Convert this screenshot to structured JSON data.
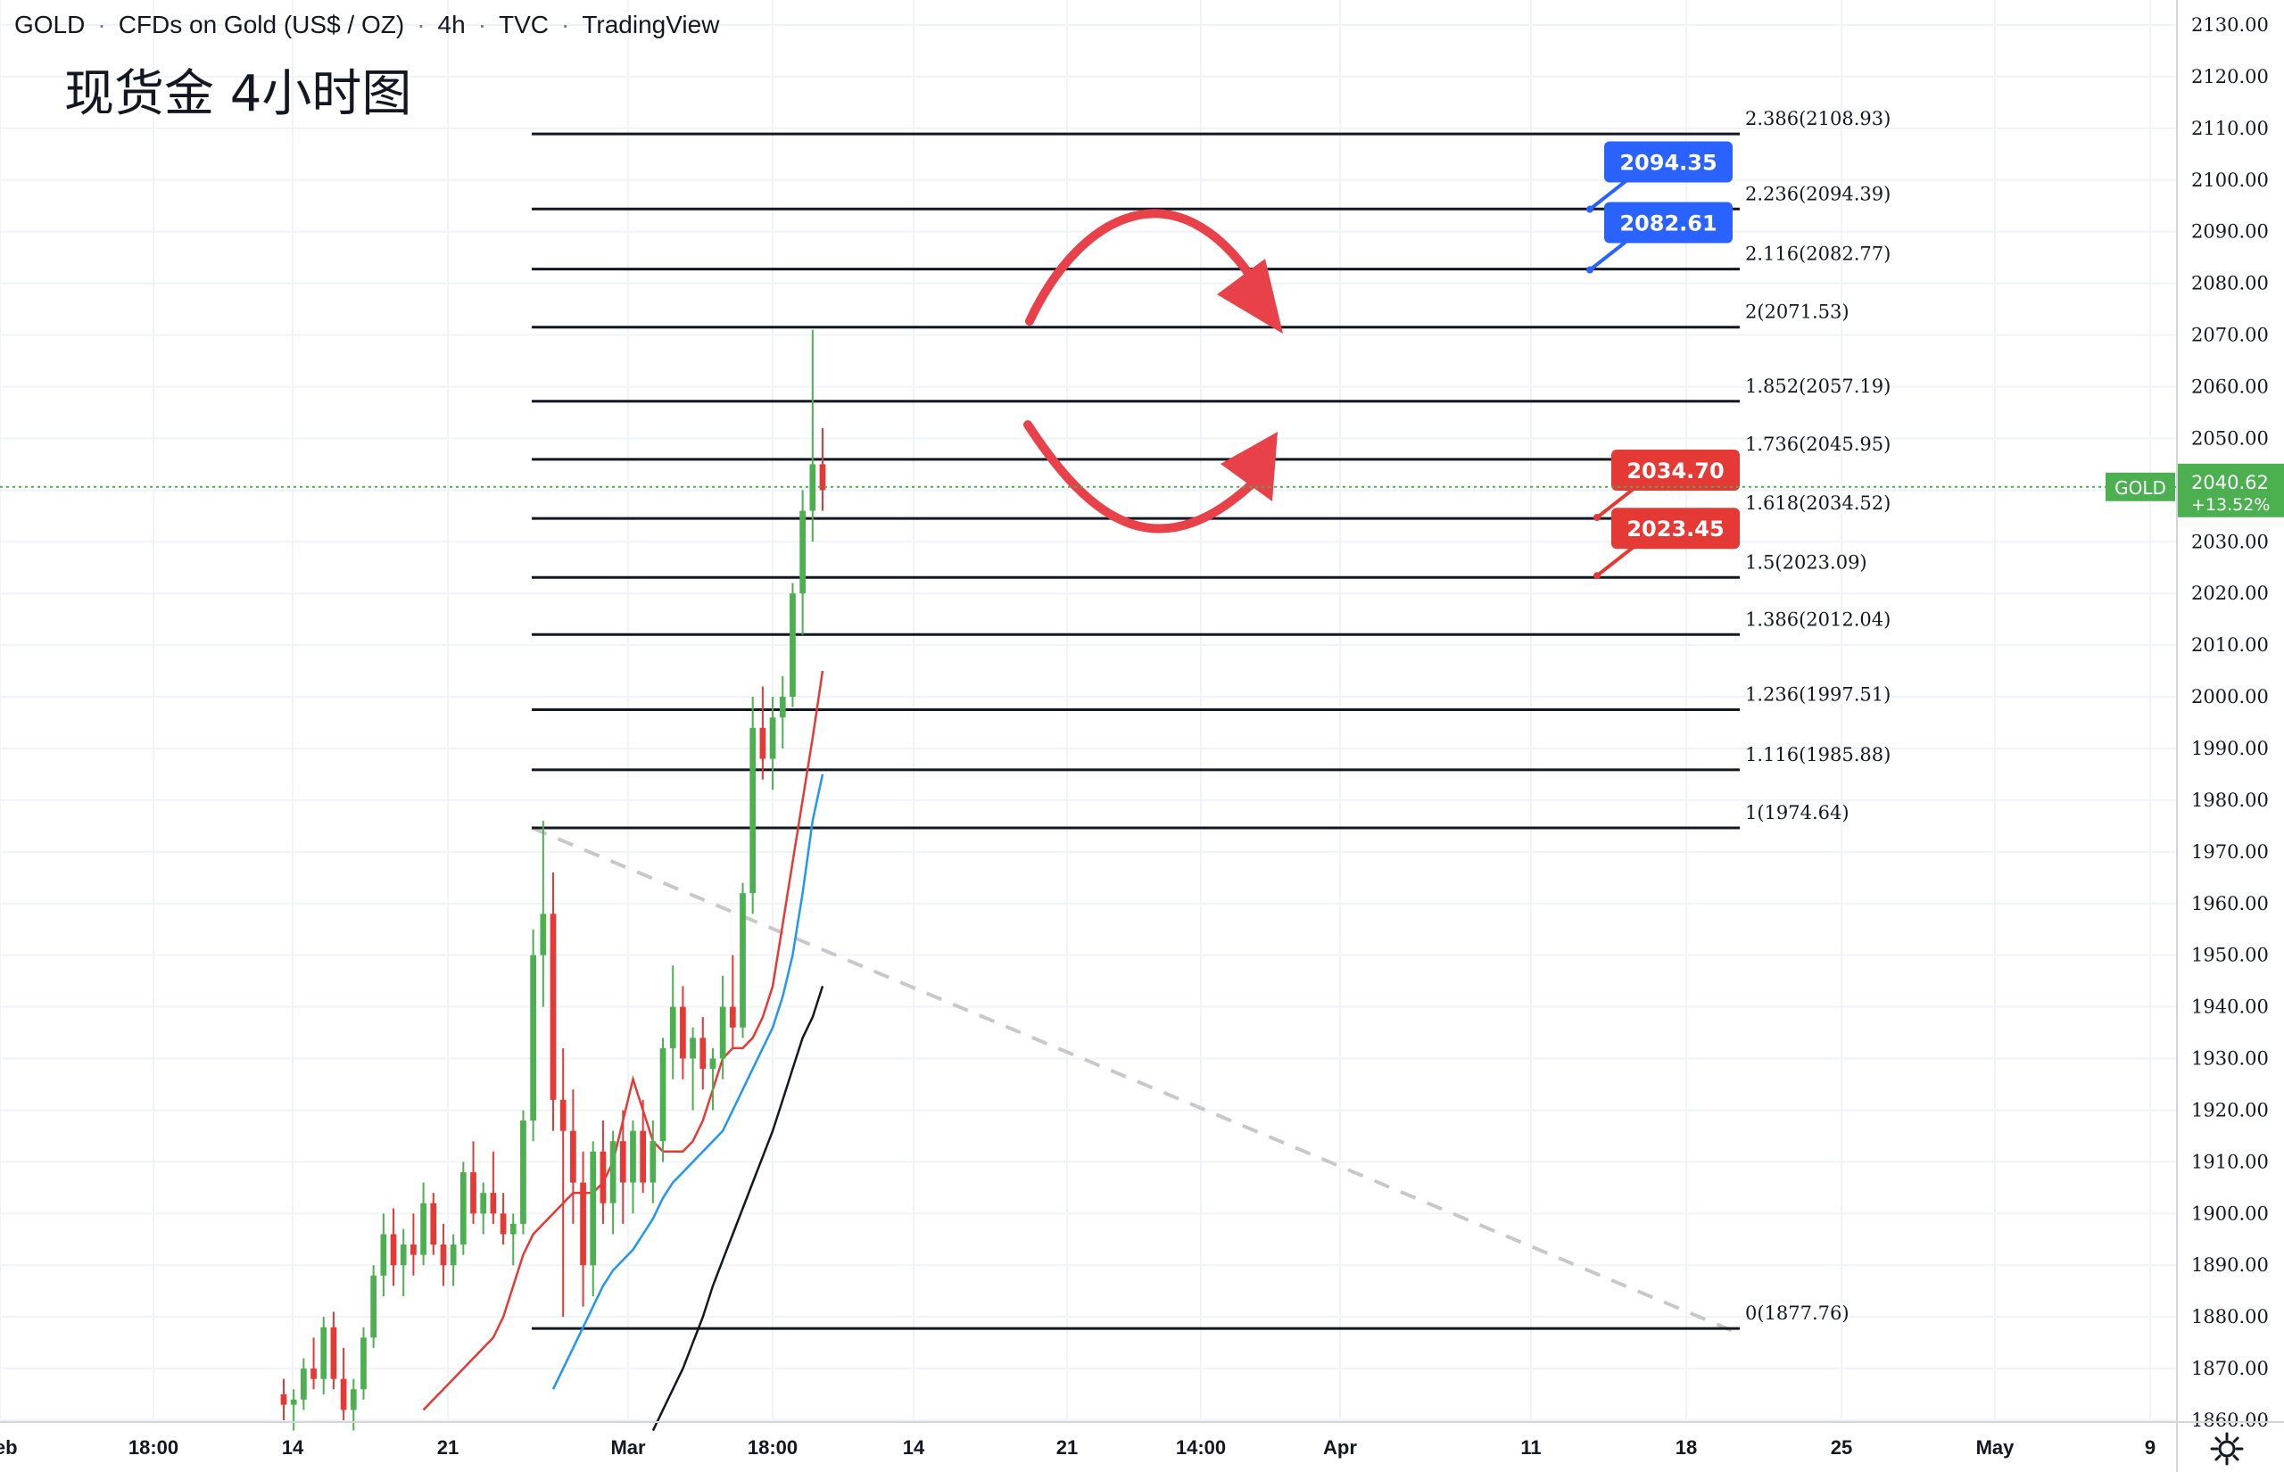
{
  "header": {
    "symbol": "GOLD",
    "instrument": "CFDs on Gold (US$ / OZ)",
    "interval": "4h",
    "exchange": "TVC",
    "brand": "TradingView"
  },
  "annotation_title": "现货金 4小时图",
  "colors": {
    "bull": "#4caf50",
    "bear": "#e53935",
    "ma_fast": "#e53935",
    "ma_mid": "#2196f3",
    "ma_slow": "#131722",
    "fib_line": "#131722",
    "trend_line": "#c8c8c8",
    "label_blue": "#2962ff",
    "label_red": "#e53935",
    "price_tag": "#4caf50",
    "arrow": "#e8414a"
  },
  "chart_data": {
    "type": "candlestick",
    "symbol": "GOLD",
    "interval": "4h",
    "ylim": [
      1860,
      2130
    ],
    "y_ticks": [
      1860,
      1870,
      1880,
      1890,
      1900,
      1910,
      1920,
      1930,
      1940,
      1950,
      1960,
      1970,
      1980,
      1990,
      2000,
      2010,
      2020,
      2030,
      2040,
      2050,
      2060,
      2070,
      2080,
      2090,
      2100,
      2110,
      2120,
      2130
    ],
    "y_tick_labels": [
      "1860.00",
      "1870.00",
      "1880.00",
      "1890.00",
      "1900.00",
      "1910.00",
      "1920.00",
      "1930.00",
      "1940.00",
      "1950.00",
      "1960.00",
      "1970.00",
      "1980.00",
      "1990.00",
      "2000.00",
      "2010.00",
      "2020.00",
      "2030.00",
      "2040.00",
      "2050.00",
      "2060.00",
      "2070.00",
      "2080.00",
      "2090.00",
      "2100.00",
      "2110.00",
      "2120.00",
      "2130.00"
    ],
    "x_ticks": [
      "Feb",
      "18:00",
      "14",
      "21",
      "Mar",
      "18:00",
      "14",
      "21",
      "14:00",
      "Apr",
      "11",
      "18",
      "25",
      "May",
      "9"
    ],
    "last_price": {
      "symbol": "GOLD",
      "price": "2040.62",
      "change": "+13.52%"
    },
    "fibonacci_levels": [
      {
        "label": "2.386(2108.93)",
        "price": 2108.93
      },
      {
        "label": "2.236(2094.39)",
        "price": 2094.39
      },
      {
        "label": "2.116(2082.77)",
        "price": 2082.77
      },
      {
        "label": "2(2071.53)",
        "price": 2071.53
      },
      {
        "label": "1.852(2057.19)",
        "price": 2057.19
      },
      {
        "label": "1.736(2045.95)",
        "price": 2045.95
      },
      {
        "label": "1.618(2034.52)",
        "price": 2034.52
      },
      {
        "label": "1.5(2023.09)",
        "price": 2023.09
      },
      {
        "label": "1.386(2012.04)",
        "price": 2012.04
      },
      {
        "label": "1.236(1997.51)",
        "price": 1997.51
      },
      {
        "label": "1.116(1985.88)",
        "price": 1985.88
      },
      {
        "label": "1(1974.64)",
        "price": 1974.64
      },
      {
        "label": "0(1877.76)",
        "price": 1877.76
      }
    ],
    "callouts": [
      {
        "text": "2094.35",
        "price": 2094.35,
        "color": "blue"
      },
      {
        "text": "2082.61",
        "price": 2082.61,
        "color": "blue"
      },
      {
        "text": "2034.70",
        "price": 2034.7,
        "color": "red"
      },
      {
        "text": "2023.45",
        "price": 2023.45,
        "color": "red"
      }
    ],
    "trend_line": {
      "from": 1974.64,
      "to": 1877.76,
      "style": "dashed"
    },
    "candles": [
      [
        1865,
        1868,
        1860,
        1863
      ],
      [
        1863,
        1866,
        1858,
        1864
      ],
      [
        1864,
        1872,
        1862,
        1870
      ],
      [
        1870,
        1876,
        1866,
        1868
      ],
      [
        1868,
        1880,
        1865,
        1878
      ],
      [
        1878,
        1881,
        1866,
        1868
      ],
      [
        1868,
        1874,
        1860,
        1862
      ],
      [
        1862,
        1868,
        1858,
        1866
      ],
      [
        1866,
        1878,
        1864,
        1876
      ],
      [
        1876,
        1890,
        1874,
        1888
      ],
      [
        1888,
        1900,
        1884,
        1896
      ],
      [
        1896,
        1901,
        1886,
        1890
      ],
      [
        1890,
        1897,
        1884,
        1894
      ],
      [
        1894,
        1900,
        1888,
        1892
      ],
      [
        1892,
        1906,
        1890,
        1902
      ],
      [
        1902,
        1904,
        1892,
        1894
      ],
      [
        1894,
        1898,
        1886,
        1890
      ],
      [
        1890,
        1896,
        1886,
        1894
      ],
      [
        1894,
        1910,
        1892,
        1908
      ],
      [
        1908,
        1914,
        1898,
        1900
      ],
      [
        1900,
        1906,
        1896,
        1904
      ],
      [
        1904,
        1912,
        1898,
        1900
      ],
      [
        1900,
        1904,
        1894,
        1896
      ],
      [
        1896,
        1900,
        1890,
        1898
      ],
      [
        1898,
        1920,
        1896,
        1918
      ],
      [
        1918,
        1955,
        1914,
        1950
      ],
      [
        1950,
        1976,
        1940,
        1958
      ],
      [
        1958,
        1966,
        1916,
        1922
      ],
      [
        1922,
        1932,
        1880,
        1916
      ],
      [
        1916,
        1924,
        1898,
        1906
      ],
      [
        1906,
        1912,
        1882,
        1890
      ],
      [
        1890,
        1914,
        1884,
        1912
      ],
      [
        1912,
        1918,
        1898,
        1902
      ],
      [
        1902,
        1916,
        1896,
        1914
      ],
      [
        1914,
        1920,
        1898,
        1906
      ],
      [
        1906,
        1918,
        1900,
        1916
      ],
      [
        1916,
        1922,
        1904,
        1906
      ],
      [
        1906,
        1918,
        1902,
        1914
      ],
      [
        1914,
        1934,
        1910,
        1932
      ],
      [
        1932,
        1948,
        1926,
        1940
      ],
      [
        1940,
        1944,
        1926,
        1930
      ],
      [
        1930,
        1936,
        1920,
        1934
      ],
      [
        1934,
        1938,
        1924,
        1928
      ],
      [
        1928,
        1932,
        1920,
        1930
      ],
      [
        1930,
        1946,
        1926,
        1940
      ],
      [
        1940,
        1950,
        1932,
        1936
      ],
      [
        1936,
        1964,
        1934,
        1962
      ],
      [
        1962,
        2000,
        1958,
        1994
      ],
      [
        1994,
        2002,
        1984,
        1988
      ],
      [
        1988,
        2000,
        1982,
        1996
      ],
      [
        1996,
        2004,
        1990,
        2000
      ],
      [
        2000,
        2022,
        1998,
        2020
      ],
      [
        2020,
        2040,
        2012,
        2036
      ],
      [
        2036,
        2071,
        2030,
        2045
      ],
      [
        2045,
        2052,
        2036,
        2040
      ]
    ],
    "moving_averages": [
      {
        "color": "red",
        "values": [
          1862,
          1864,
          1866,
          1868,
          1870,
          1872,
          1874,
          1876,
          1880,
          1886,
          1892,
          1896,
          1898,
          1900,
          1902,
          1904,
          1904,
          1904,
          1906,
          1910,
          1918,
          1926,
          1920,
          1914,
          1912,
          1912,
          1912,
          1914,
          1918,
          1924,
          1930,
          1932,
          1932,
          1934,
          1938,
          1944,
          1956,
          1968,
          1980,
          1992,
          2005
        ]
      },
      {
        "color": "blue",
        "values": [
          1866,
          1870,
          1874,
          1878,
          1882,
          1886,
          1889,
          1891,
          1893,
          1896,
          1899,
          1903,
          1906,
          1908,
          1910,
          1912,
          1914,
          1916,
          1920,
          1924,
          1928,
          1932,
          1936,
          1942,
          1950,
          1962,
          1976,
          1985
        ]
      },
      {
        "color": "black",
        "values": [
          1858,
          1862,
          1866,
          1870,
          1875,
          1880,
          1886,
          1891,
          1896,
          1901,
          1906,
          1911,
          1916,
          1922,
          1928,
          1934,
          1938,
          1944
        ]
      }
    ]
  }
}
